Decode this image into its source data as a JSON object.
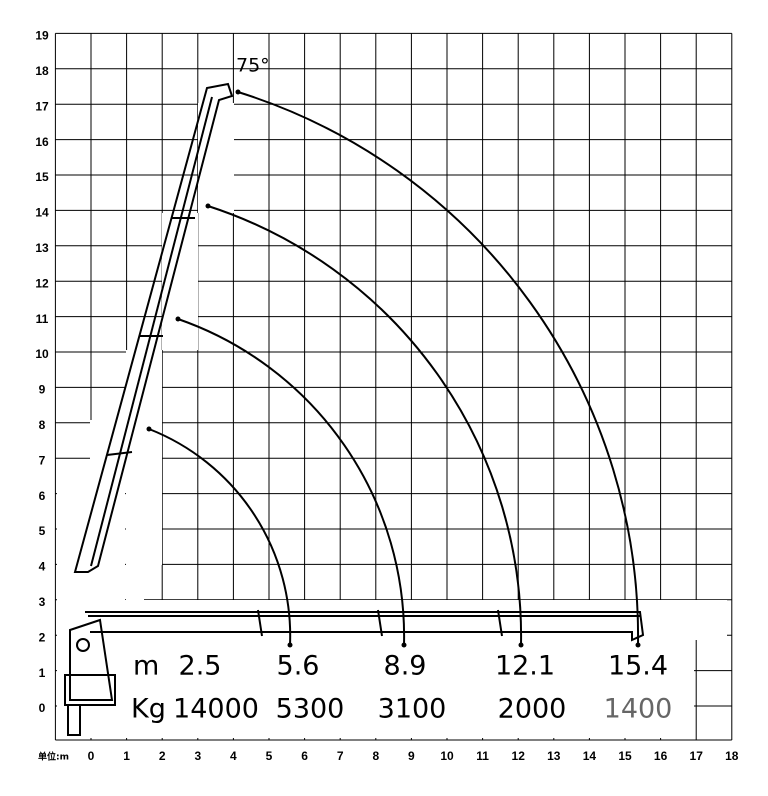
{
  "y_axis": {
    "labels": [
      0,
      1,
      2,
      3,
      4,
      5,
      6,
      7,
      8,
      9,
      10,
      11,
      12,
      13,
      14,
      15,
      16,
      17,
      18,
      19
    ]
  },
  "x_axis": {
    "unit": "单位:m",
    "labels": [
      0,
      1,
      2,
      3,
      4,
      5,
      6,
      7,
      8,
      9,
      10,
      11,
      12,
      13,
      14,
      15,
      16,
      17,
      18
    ]
  },
  "boom_angle": "75°",
  "radius_unit": "m",
  "load_unit": "Kg",
  "working_radii": [
    2.5,
    5.6,
    8.9,
    12.1,
    15.4
  ],
  "rated_loads": [
    14000,
    5300,
    3100,
    2000,
    1400
  ]
}
